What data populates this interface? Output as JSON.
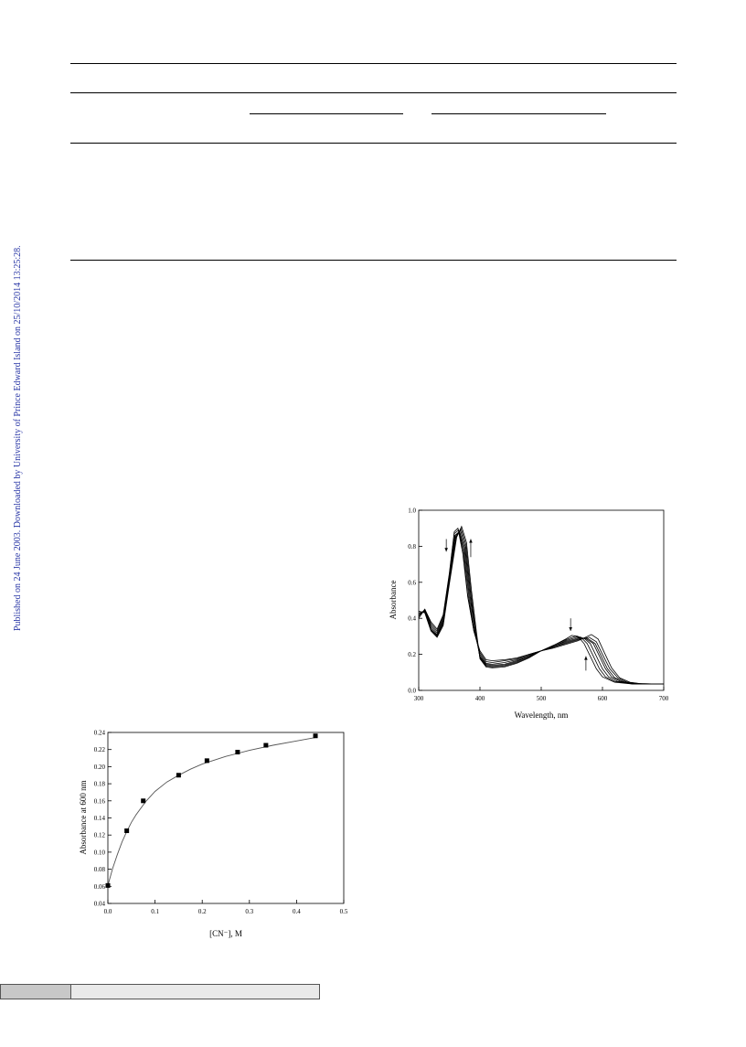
{
  "sidebar": {
    "text": "Published on 24 June 2003. Downloaded by University of Prince Edward Island on 25/10/2014 13:25:28."
  },
  "chart_data": [
    {
      "type": "line",
      "title": "",
      "xlabel": "Wavelength, nm",
      "ylabel": "Absorbance",
      "xlim": [
        300,
        700
      ],
      "ylim": [
        0.0,
        1.0
      ],
      "xticks": [
        "300",
        "400",
        "500",
        "600",
        "700"
      ],
      "yticks": [
        "0.0",
        "0.2",
        "0.4",
        "0.6",
        "0.8",
        "1.0"
      ],
      "grid": false,
      "legend": "none",
      "annotations": [
        "decrease arrow near 360 nm",
        "increase arrow near 375 nm",
        "decrease arrow near 545 nm",
        "increase arrow near 575 nm"
      ],
      "series": [
        {
          "values": [
            [
              300,
              0.4
            ],
            [
              310,
              0.45
            ],
            [
              320,
              0.38
            ],
            [
              330,
              0.34
            ],
            [
              340,
              0.42
            ],
            [
              350,
              0.65
            ],
            [
              358,
              0.88
            ],
            [
              364,
              0.9
            ],
            [
              372,
              0.76
            ],
            [
              380,
              0.52
            ],
            [
              390,
              0.33
            ],
            [
              400,
              0.22
            ],
            [
              410,
              0.17
            ],
            [
              420,
              0.165
            ],
            [
              440,
              0.17
            ],
            [
              460,
              0.18
            ],
            [
              480,
              0.2
            ],
            [
              500,
              0.22
            ],
            [
              520,
              0.25
            ],
            [
              540,
              0.285
            ],
            [
              550,
              0.305
            ],
            [
              560,
              0.3
            ],
            [
              570,
              0.26
            ],
            [
              580,
              0.19
            ],
            [
              590,
              0.12
            ],
            [
              600,
              0.075
            ],
            [
              620,
              0.045
            ],
            [
              650,
              0.035
            ],
            [
              700,
              0.035
            ]
          ]
        },
        {
          "values": [
            [
              300,
              0.41
            ],
            [
              310,
              0.45
            ],
            [
              320,
              0.37
            ],
            [
              330,
              0.33
            ],
            [
              340,
              0.41
            ],
            [
              350,
              0.64
            ],
            [
              358,
              0.87
            ],
            [
              365,
              0.89
            ],
            [
              373,
              0.77
            ],
            [
              380,
              0.53
            ],
            [
              390,
              0.33
            ],
            [
              400,
              0.21
            ],
            [
              410,
              0.16
            ],
            [
              420,
              0.155
            ],
            [
              440,
              0.165
            ],
            [
              460,
              0.175
            ],
            [
              480,
              0.2
            ],
            [
              500,
              0.22
            ],
            [
              520,
              0.25
            ],
            [
              540,
              0.28
            ],
            [
              555,
              0.3
            ],
            [
              565,
              0.295
            ],
            [
              575,
              0.26
            ],
            [
              585,
              0.19
            ],
            [
              595,
              0.12
            ],
            [
              605,
              0.075
            ],
            [
              620,
              0.05
            ],
            [
              650,
              0.035
            ],
            [
              700,
              0.035
            ]
          ]
        },
        {
          "values": [
            [
              300,
              0.42
            ],
            [
              310,
              0.445
            ],
            [
              320,
              0.36
            ],
            [
              330,
              0.32
            ],
            [
              340,
              0.4
            ],
            [
              350,
              0.63
            ],
            [
              359,
              0.86
            ],
            [
              366,
              0.88
            ],
            [
              374,
              0.78
            ],
            [
              382,
              0.52
            ],
            [
              390,
              0.34
            ],
            [
              400,
              0.2
            ],
            [
              410,
              0.15
            ],
            [
              420,
              0.145
            ],
            [
              440,
              0.155
            ],
            [
              460,
              0.17
            ],
            [
              480,
              0.195
            ],
            [
              500,
              0.22
            ],
            [
              520,
              0.245
            ],
            [
              540,
              0.275
            ],
            [
              558,
              0.295
            ],
            [
              570,
              0.29
            ],
            [
              580,
              0.26
            ],
            [
              590,
              0.19
            ],
            [
              600,
              0.12
            ],
            [
              610,
              0.075
            ],
            [
              625,
              0.05
            ],
            [
              650,
              0.036
            ],
            [
              700,
              0.035
            ]
          ]
        },
        {
          "values": [
            [
              300,
              0.42
            ],
            [
              310,
              0.44
            ],
            [
              320,
              0.35
            ],
            [
              330,
              0.31
            ],
            [
              340,
              0.39
            ],
            [
              350,
              0.62
            ],
            [
              360,
              0.86
            ],
            [
              367,
              0.88
            ],
            [
              375,
              0.79
            ],
            [
              383,
              0.53
            ],
            [
              392,
              0.33
            ],
            [
              400,
              0.19
            ],
            [
              410,
              0.145
            ],
            [
              420,
              0.14
            ],
            [
              440,
              0.145
            ],
            [
              460,
              0.165
            ],
            [
              480,
              0.19
            ],
            [
              500,
              0.22
            ],
            [
              520,
              0.245
            ],
            [
              540,
              0.27
            ],
            [
              560,
              0.29
            ],
            [
              572,
              0.29
            ],
            [
              585,
              0.26
            ],
            [
              595,
              0.19
            ],
            [
              605,
              0.12
            ],
            [
              615,
              0.075
            ],
            [
              630,
              0.05
            ],
            [
              650,
              0.038
            ],
            [
              700,
              0.035
            ]
          ]
        },
        {
          "values": [
            [
              300,
              0.43
            ],
            [
              310,
              0.44
            ],
            [
              320,
              0.34
            ],
            [
              330,
              0.305
            ],
            [
              340,
              0.38
            ],
            [
              350,
              0.61
            ],
            [
              360,
              0.85
            ],
            [
              368,
              0.89
            ],
            [
              376,
              0.8
            ],
            [
              384,
              0.54
            ],
            [
              392,
              0.33
            ],
            [
              400,
              0.185
            ],
            [
              410,
              0.14
            ],
            [
              420,
              0.135
            ],
            [
              440,
              0.14
            ],
            [
              460,
              0.16
            ],
            [
              480,
              0.19
            ],
            [
              500,
              0.22
            ],
            [
              520,
              0.24
            ],
            [
              540,
              0.265
            ],
            [
              560,
              0.285
            ],
            [
              575,
              0.29
            ],
            [
              588,
              0.26
            ],
            [
              598,
              0.19
            ],
            [
              608,
              0.12
            ],
            [
              620,
              0.07
            ],
            [
              635,
              0.048
            ],
            [
              655,
              0.037
            ],
            [
              700,
              0.035
            ]
          ]
        },
        {
          "values": [
            [
              300,
              0.43
            ],
            [
              310,
              0.435
            ],
            [
              320,
              0.335
            ],
            [
              330,
              0.3
            ],
            [
              340,
              0.37
            ],
            [
              350,
              0.6
            ],
            [
              361,
              0.85
            ],
            [
              369,
              0.9
            ],
            [
              377,
              0.81
            ],
            [
              385,
              0.55
            ],
            [
              393,
              0.33
            ],
            [
              400,
              0.18
            ],
            [
              410,
              0.135
            ],
            [
              420,
              0.13
            ],
            [
              440,
              0.135
            ],
            [
              460,
              0.155
            ],
            [
              480,
              0.185
            ],
            [
              500,
              0.22
            ],
            [
              520,
              0.24
            ],
            [
              540,
              0.26
            ],
            [
              560,
              0.28
            ],
            [
              578,
              0.295
            ],
            [
              590,
              0.27
            ],
            [
              600,
              0.2
            ],
            [
              612,
              0.12
            ],
            [
              625,
              0.07
            ],
            [
              640,
              0.046
            ],
            [
              660,
              0.037
            ],
            [
              700,
              0.035
            ]
          ]
        },
        {
          "values": [
            [
              300,
              0.44
            ],
            [
              310,
              0.43
            ],
            [
              320,
              0.33
            ],
            [
              330,
              0.295
            ],
            [
              340,
              0.36
            ],
            [
              350,
              0.59
            ],
            [
              362,
              0.85
            ],
            [
              370,
              0.91
            ],
            [
              378,
              0.82
            ],
            [
              386,
              0.56
            ],
            [
              394,
              0.33
            ],
            [
              400,
              0.175
            ],
            [
              410,
              0.13
            ],
            [
              420,
              0.125
            ],
            [
              440,
              0.13
            ],
            [
              460,
              0.15
            ],
            [
              480,
              0.18
            ],
            [
              500,
              0.22
            ],
            [
              520,
              0.235
            ],
            [
              540,
              0.255
            ],
            [
              560,
              0.275
            ],
            [
              582,
              0.31
            ],
            [
              593,
              0.285
            ],
            [
              603,
              0.21
            ],
            [
              615,
              0.125
            ],
            [
              628,
              0.07
            ],
            [
              645,
              0.045
            ],
            [
              665,
              0.036
            ],
            [
              700,
              0.035
            ]
          ]
        }
      ]
    },
    {
      "type": "scatter",
      "title": "",
      "xlabel": "[CN⁻], M",
      "ylabel": "Absorbance at 600 nm",
      "xlim": [
        0.0,
        0.5
      ],
      "ylim": [
        0.04,
        0.24
      ],
      "xticks": [
        "0.0",
        "0.1",
        "0.2",
        "0.3",
        "0.4",
        "0.5"
      ],
      "yticks": [
        "0.04",
        "0.06",
        "0.08",
        "0.10",
        "0.12",
        "0.14",
        "0.16",
        "0.18",
        "0.20",
        "0.22",
        "0.24"
      ],
      "grid": false,
      "legend": "none",
      "series": [
        {
          "x": [
            0.0,
            0.04,
            0.075,
            0.15,
            0.21,
            0.275,
            0.335,
            0.44
          ],
          "y": [
            0.061,
            0.125,
            0.16,
            0.19,
            0.207,
            0.217,
            0.225,
            0.236
          ]
        }
      ],
      "fit": {
        "x": [
          0.0,
          0.01,
          0.02,
          0.03,
          0.04,
          0.05,
          0.06,
          0.08,
          0.1,
          0.125,
          0.15,
          0.175,
          0.2,
          0.25,
          0.3,
          0.35,
          0.4,
          0.44
        ],
        "y": [
          0.061,
          0.081,
          0.097,
          0.112,
          0.124,
          0.135,
          0.144,
          0.159,
          0.171,
          0.182,
          0.19,
          0.197,
          0.203,
          0.212,
          0.219,
          0.225,
          0.23,
          0.234
        ]
      }
    }
  ]
}
